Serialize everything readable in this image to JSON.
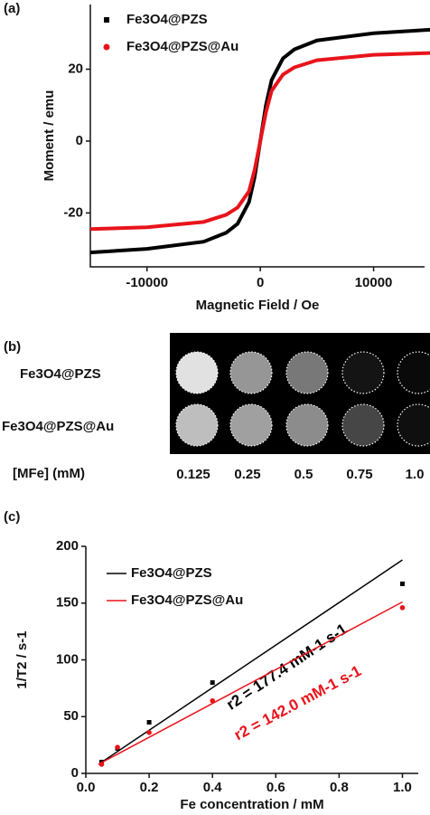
{
  "chart_data": [
    {
      "type": "line",
      "panel": "(a)",
      "x_label": "Magnetic Field / Oe",
      "y_label": "Moment / emu",
      "x": [
        -15000,
        -10000,
        -5000,
        -3000,
        -2000,
        -1000,
        -500,
        0,
        500,
        1000,
        2000,
        3000,
        5000,
        10000,
        15000
      ],
      "series": [
        {
          "name": "Fe3O4@PZS",
          "color": "#000000",
          "values": [
            -31,
            -30,
            -28,
            -25.5,
            -23,
            -17,
            -10,
            0,
            10,
            17,
            23,
            25.5,
            28,
            30,
            31
          ]
        },
        {
          "name": "Fe3O4@PZS@Au",
          "color": "#e8141b",
          "values": [
            -24.5,
            -24,
            -22.5,
            -20.5,
            -18.5,
            -14,
            -8,
            0,
            8,
            14,
            18.5,
            20.5,
            22.5,
            24,
            24.5
          ]
        }
      ],
      "xlim": [
        -15000,
        14500
      ],
      "xticks": [
        -10000,
        0,
        10000
      ],
      "ylim": [
        -35,
        38
      ],
      "yticks": [
        -20,
        0,
        20
      ]
    },
    {
      "type": "scatter",
      "panel": "(c)",
      "x_label": "Fe concentration / mM",
      "y_label": "1/T2 / s-1",
      "x": [
        0.05,
        0.1,
        0.2,
        0.4,
        1.0
      ],
      "series": [
        {
          "name": "Fe3O4@PZS",
          "color": "#000000",
          "values": [
            10,
            22,
            45,
            80,
            167
          ],
          "fit_x": [
            0.04,
            1.0
          ],
          "fit_values": [
            8,
            188
          ],
          "annotation": "r2 = 177.4 mM-1 s-1"
        },
        {
          "name": "Fe3O4@PZS@Au",
          "color": "#e8141b",
          "values": [
            8,
            23,
            36,
            64,
            146
          ],
          "fit_x": [
            0.04,
            1.0
          ],
          "fit_values": [
            8,
            151
          ],
          "annotation": "r2 = 142.0 mM-1 s-1"
        }
      ],
      "xlim": [
        0,
        1.05
      ],
      "xticks": [
        {
          "value": 0,
          "label": "0.0"
        },
        0.2,
        0.4,
        0.6,
        0.8,
        {
          "value": 1,
          "label": "1.0"
        }
      ],
      "ylim": [
        0,
        200
      ],
      "yticks": [
        0,
        50,
        100,
        150,
        200
      ]
    }
  ],
  "panel_b": {
    "panel": "(b)",
    "rows": [
      "Fe3O4@PZS",
      "Fe3O4@PZS@Au"
    ],
    "concentration_label": "[MFe] (mM)",
    "columns": [
      "0.125",
      "0.25",
      "0.5",
      "0.75",
      "1.0"
    ]
  }
}
